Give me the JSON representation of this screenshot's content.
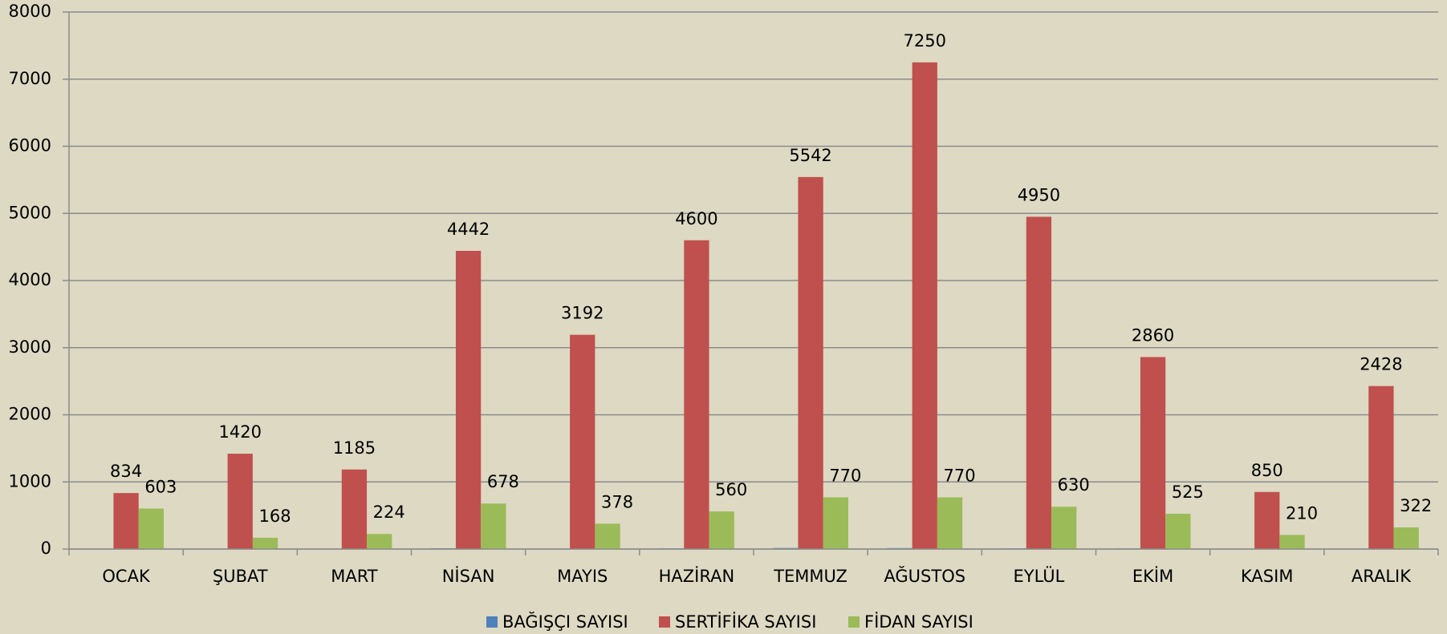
{
  "chart_data": {
    "type": "bar",
    "categories": [
      "OCAK",
      "ŞUBAT",
      "MART",
      "NİSAN",
      "MAYIS",
      "HAZİRAN",
      "TEMMUZ",
      "AĞUSTOS",
      "EYLÜL",
      "EKİM",
      "KASIM",
      "ARALIK"
    ],
    "series": [
      {
        "name": "BAĞIŞÇI SAYISI",
        "color": "#4f81bd",
        "show_labels": false,
        "values": [
          5,
          3,
          2,
          12,
          6,
          10,
          15,
          14,
          10,
          8,
          4,
          3
        ]
      },
      {
        "name": "SERTİFİKA SAYISI",
        "color": "#c0504d",
        "show_labels": true,
        "values": [
          834,
          1420,
          1185,
          4442,
          3192,
          4600,
          5542,
          7250,
          4950,
          2860,
          850,
          2428
        ]
      },
      {
        "name": "FİDAN SAYISI",
        "color": "#9bbb59",
        "show_labels": true,
        "values": [
          603,
          168,
          224,
          678,
          378,
          560,
          770,
          770,
          630,
          525,
          210,
          322
        ]
      }
    ],
    "ylim": [
      0,
      8000
    ],
    "yticks": [
      0,
      1000,
      2000,
      3000,
      4000,
      5000,
      6000,
      7000,
      8000
    ],
    "grid": true,
    "legend": "bottom"
  }
}
